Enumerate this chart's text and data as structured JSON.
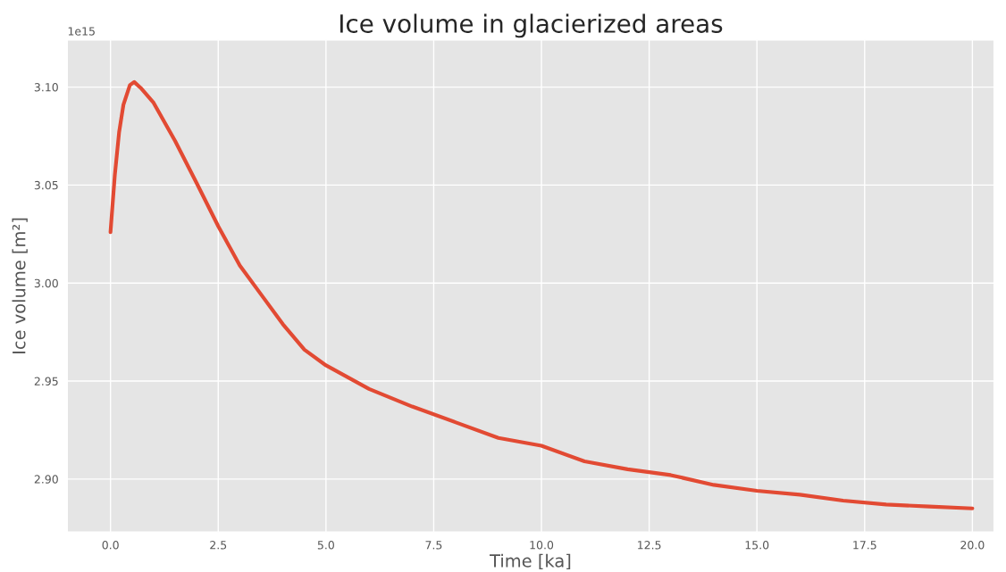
{
  "chart_data": {
    "type": "line",
    "title": "Ice volume in glacierized areas",
    "xlabel": "Time [ka]",
    "ylabel": "Ice volume [m²]",
    "annotations": [
      "1e15"
    ],
    "series": [
      {
        "color": "#e24a33",
        "x": [
          0,
          0.1,
          0.2,
          0.3,
          0.45,
          0.55,
          0.7,
          1.0,
          1.5,
          2.0,
          2.5,
          3.0,
          3.5,
          4.0,
          4.5,
          5.0,
          6.0,
          7.0,
          8.0,
          9.0,
          10.0,
          11.0,
          12.0,
          13.0,
          14.0,
          15.0,
          16.0,
          17.0,
          18.0,
          19.0,
          20.0
        ],
        "values": [
          3.026,
          3.055,
          3.077,
          3.091,
          3.101,
          3.1026,
          3.0996,
          3.092,
          3.0725,
          3.051,
          3.029,
          3.009,
          2.994,
          2.979,
          2.966,
          2.958,
          2.946,
          2.937,
          2.929,
          2.921,
          2.917,
          2.909,
          2.905,
          2.902,
          2.897,
          2.894,
          2.892,
          2.889,
          2.887,
          2.886,
          2.885
        ]
      }
    ],
    "xlim": [
      -1.0,
      20.5
    ],
    "ylim": [
      2.873,
      3.124
    ],
    "xticks": [
      {
        "value": 0,
        "label": "0.0"
      },
      {
        "value": 2.5,
        "label": "2.5"
      },
      {
        "value": 5,
        "label": "5.0"
      },
      {
        "value": 7.5,
        "label": "7.5"
      },
      {
        "value": 10,
        "label": "10.0"
      },
      {
        "value": 12.5,
        "label": "12.5"
      },
      {
        "value": 15,
        "label": "15.0"
      },
      {
        "value": 17.5,
        "label": "17.5"
      },
      {
        "value": 20,
        "label": "20.0"
      }
    ],
    "yticks": [
      {
        "value": 2.9,
        "label": "2.90"
      },
      {
        "value": 2.95,
        "label": "2.95"
      },
      {
        "value": 3.0,
        "label": "3.00"
      },
      {
        "value": 3.05,
        "label": "3.05"
      },
      {
        "value": 3.1,
        "label": "3.10"
      }
    ],
    "grid": true,
    "marker": "none",
    "line_style": "solid"
  }
}
